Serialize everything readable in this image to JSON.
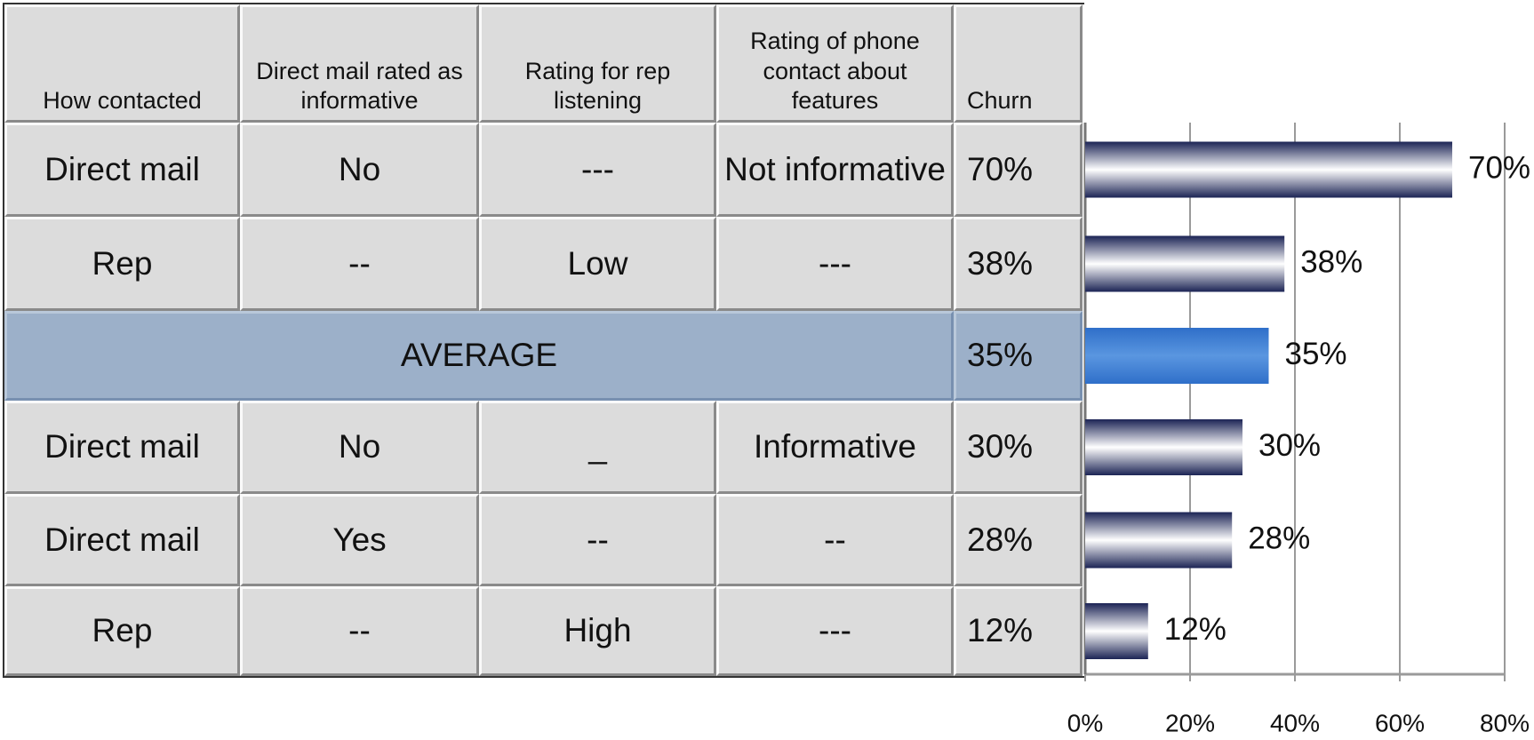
{
  "table": {
    "header": [
      "How contacted",
      "Direct mail rated as informative",
      "Rating for rep listening",
      "Rating of phone contact about features",
      "Churn"
    ],
    "rows": [
      [
        "Direct mail",
        "No",
        "---",
        "Not informative",
        "70%"
      ],
      [
        "Rep",
        "--",
        "Low",
        "---",
        "38%"
      ],
      [
        "AVERAGE",
        "35%"
      ],
      [
        "Direct mail",
        "No",
        "_",
        "Informative",
        "30%"
      ],
      [
        "Direct mail",
        "Yes",
        "--",
        "--",
        "28%"
      ],
      [
        "Rep",
        "--",
        "High",
        "---",
        "12%"
      ]
    ]
  },
  "chart_data": {
    "type": "bar",
    "orientation": "horizontal",
    "values": [
      70,
      38,
      35,
      30,
      28,
      12
    ],
    "value_labels": [
      "70%",
      "38%",
      "35%",
      "30%",
      "28%",
      "12%"
    ],
    "colors": [
      "#1c2455",
      "#1c2455",
      "#2f6fc9",
      "#1c2455",
      "#1c2455",
      "#1c2455"
    ],
    "xlim": [
      0,
      80
    ],
    "xticks": [
      {
        "value": 0,
        "label": "0%"
      },
      {
        "value": 20,
        "label": "20%"
      },
      {
        "value": 40,
        "label": "40%"
      },
      {
        "value": 60,
        "label": "60%"
      },
      {
        "value": 80,
        "label": "80%"
      }
    ],
    "grid": true
  }
}
